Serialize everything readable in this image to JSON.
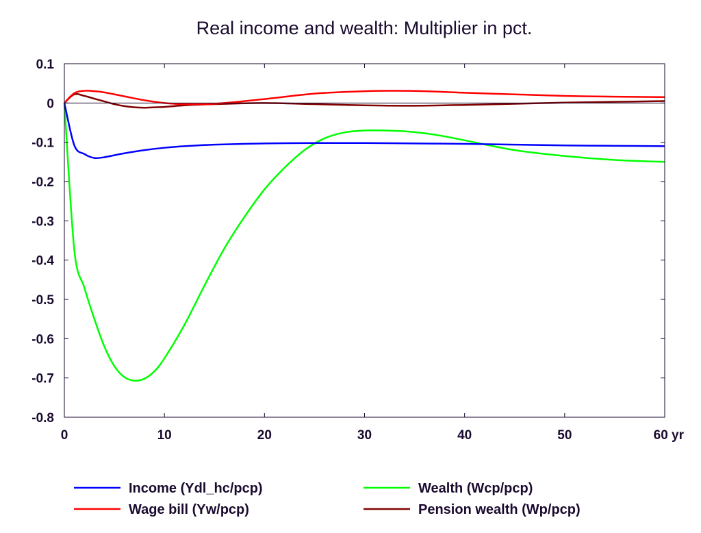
{
  "chart_data": {
    "type": "line",
    "title": "Real income and wealth: Multiplier in pct.",
    "x_unit_label": "yr",
    "xlim": [
      0,
      60
    ],
    "ylim": [
      -0.8,
      0.1
    ],
    "x_ticks": [
      0,
      10,
      20,
      30,
      40,
      50,
      60
    ],
    "x_tick_labels": [
      "0",
      "10",
      "20",
      "30",
      "40",
      "50",
      "60 yr"
    ],
    "y_ticks": [
      0.1,
      0,
      -0.1,
      -0.2,
      -0.3,
      -0.4,
      -0.5,
      -0.6,
      -0.7,
      -0.8
    ],
    "y_tick_labels": [
      "0.1",
      "0",
      "-0.1",
      "-0.2",
      "-0.3",
      "-0.4",
      "-0.5",
      "-0.6",
      "-0.7",
      "-0.8"
    ],
    "grid": false,
    "zero_line": true,
    "legend_position": "bottom",
    "series": [
      {
        "name": "Income (Ydl_hc/pcp)",
        "color": "#0000ff",
        "x": [
          0,
          1,
          2,
          3,
          4,
          5,
          6,
          8,
          10,
          12,
          15,
          20,
          25,
          30,
          35,
          40,
          45,
          50,
          55,
          60
        ],
        "y": [
          0,
          -0.108,
          -0.13,
          -0.14,
          -0.138,
          -0.133,
          -0.128,
          -0.12,
          -0.114,
          -0.11,
          -0.106,
          -0.103,
          -0.102,
          -0.102,
          -0.103,
          -0.104,
          -0.106,
          -0.108,
          -0.109,
          -0.11
        ]
      },
      {
        "name": "Wage bill (Yw/pcp)",
        "color": "#ff0000",
        "x": [
          0,
          1,
          2,
          3,
          4,
          6,
          8,
          10,
          12,
          15,
          20,
          25,
          30,
          33,
          36,
          40,
          45,
          50,
          55,
          60
        ],
        "y": [
          0,
          0.025,
          0.031,
          0.03,
          0.027,
          0.017,
          0.007,
          0.0,
          -0.003,
          -0.002,
          0.01,
          0.024,
          0.03,
          0.031,
          0.03,
          0.026,
          0.022,
          0.018,
          0.016,
          0.015
        ]
      },
      {
        "name": "Wealth (Wcp/pcp)",
        "color": "#00ff00",
        "x": [
          0,
          1,
          2,
          3,
          4,
          5,
          6,
          7,
          8,
          9,
          10,
          12,
          14,
          16,
          18,
          20,
          22,
          24,
          26,
          28,
          30,
          32,
          34,
          36,
          38,
          40,
          45,
          50,
          55,
          60
        ],
        "y": [
          0,
          -0.375,
          -0.47,
          -0.55,
          -0.62,
          -0.67,
          -0.698,
          -0.707,
          -0.702,
          -0.683,
          -0.65,
          -0.565,
          -0.465,
          -0.37,
          -0.29,
          -0.22,
          -0.165,
          -0.12,
          -0.09,
          -0.075,
          -0.07,
          -0.07,
          -0.072,
          -0.077,
          -0.085,
          -0.095,
          -0.12,
          -0.135,
          -0.145,
          -0.15
        ]
      },
      {
        "name": "Pension wealth (Wp/pcp)",
        "color": "#800000",
        "x": [
          0,
          1,
          2,
          3,
          4,
          5,
          6,
          7,
          8,
          9,
          10,
          12,
          15,
          20,
          25,
          30,
          35,
          40,
          45,
          50,
          55,
          60
        ],
        "y": [
          0,
          0.022,
          0.018,
          0.011,
          0.004,
          -0.003,
          -0.008,
          -0.011,
          -0.012,
          -0.011,
          -0.01,
          -0.006,
          -0.003,
          0.0,
          -0.003,
          -0.006,
          -0.007,
          -0.005,
          -0.002,
          0.001,
          0.003,
          0.005
        ]
      }
    ]
  }
}
